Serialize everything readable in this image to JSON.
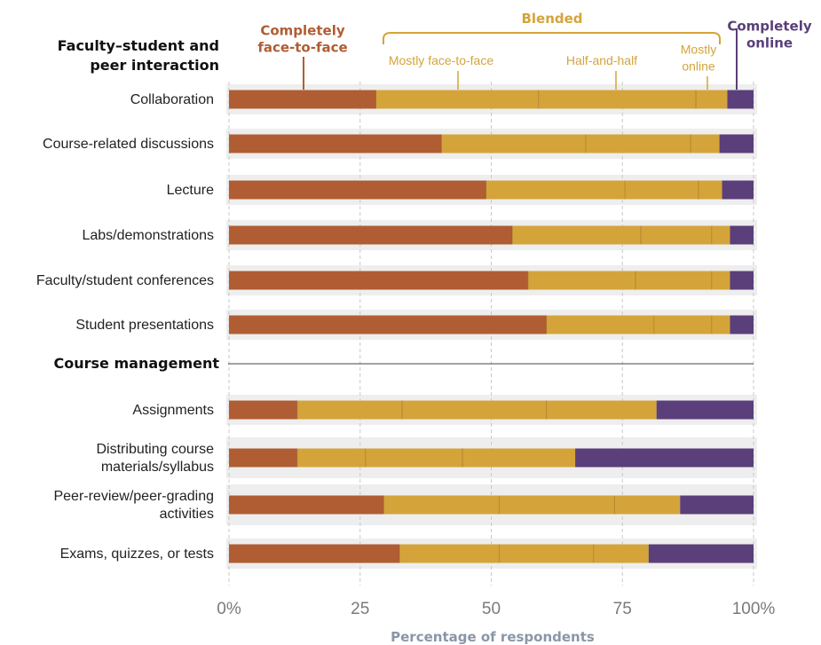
{
  "chart_data": {
    "type": "bar",
    "stacked": true,
    "orientation": "horizontal",
    "xlabel": "Percentage of respondents",
    "xlim": [
      0,
      100
    ],
    "xticks": [
      "0%",
      "25",
      "50",
      "75",
      "100%"
    ],
    "sections": [
      {
        "title": "Faculty–student and peer interaction",
        "title_lines": [
          "Faculty–student and",
          "peer interaction"
        ],
        "categories": [
          {
            "label": [
              "Collaboration"
            ],
            "values": [
              28,
              31,
              30,
              6,
              5
            ]
          },
          {
            "label": [
              "Course-related discussions"
            ],
            "values": [
              40.5,
              27.5,
              20,
              5.5,
              6.5
            ]
          },
          {
            "label": [
              "Lecture"
            ],
            "values": [
              49,
              26.5,
              14,
              4.5,
              6
            ]
          },
          {
            "label": [
              "Labs/demonstrations"
            ],
            "values": [
              54,
              24.5,
              13.5,
              3.5,
              4.5
            ]
          },
          {
            "label": [
              "Faculty/student conferences"
            ],
            "values": [
              57,
              20.5,
              14.5,
              3.5,
              4.5
            ]
          },
          {
            "label": [
              "Student presentations"
            ],
            "values": [
              60.5,
              20.5,
              11,
              3.5,
              4.5
            ]
          }
        ]
      },
      {
        "title": "Course management",
        "title_lines": [
          "Course management"
        ],
        "categories": [
          {
            "label": [
              "Assignments"
            ],
            "values": [
              13,
              20,
              27.5,
              21,
              18.5
            ]
          },
          {
            "label": [
              "Distributing course",
              "materials/syllabus"
            ],
            "values": [
              13,
              13,
              18.5,
              21.5,
              34
            ]
          },
          {
            "label": [
              "Peer-review/peer-grading",
              "activities"
            ],
            "values": [
              29.5,
              22,
              22,
              12.5,
              14
            ]
          },
          {
            "label": [
              "Exams, quizzes, or tests"
            ],
            "values": [
              32.5,
              19,
              18,
              10.5,
              20
            ]
          }
        ]
      }
    ],
    "series": [
      {
        "name": "Completely face-to-face",
        "color": "#b05d33"
      },
      {
        "name": "Mostly face-to-face",
        "color": "#d4a43a"
      },
      {
        "name": "Half-and-half",
        "color": "#d4a43a"
      },
      {
        "name": "Mostly online",
        "color": "#d4a43a"
      },
      {
        "name": "Completely online",
        "color": "#5a3f7a"
      }
    ],
    "legend": {
      "completely_f2f": [
        "Completely",
        "face-to-face"
      ],
      "blended": "Blended",
      "mostly_f2f": "Mostly face-to-face",
      "half": "Half-and-half",
      "mostly_online": [
        "Mostly",
        "online"
      ],
      "completely_online": [
        "Completely",
        "online"
      ]
    },
    "grid": true,
    "colors": {
      "face_to_face": "#b05d33",
      "blended": "#d4a43a",
      "online": "#5a3f7a",
      "row_band": "#eeeeee",
      "grid": "#c8c8c8"
    }
  }
}
